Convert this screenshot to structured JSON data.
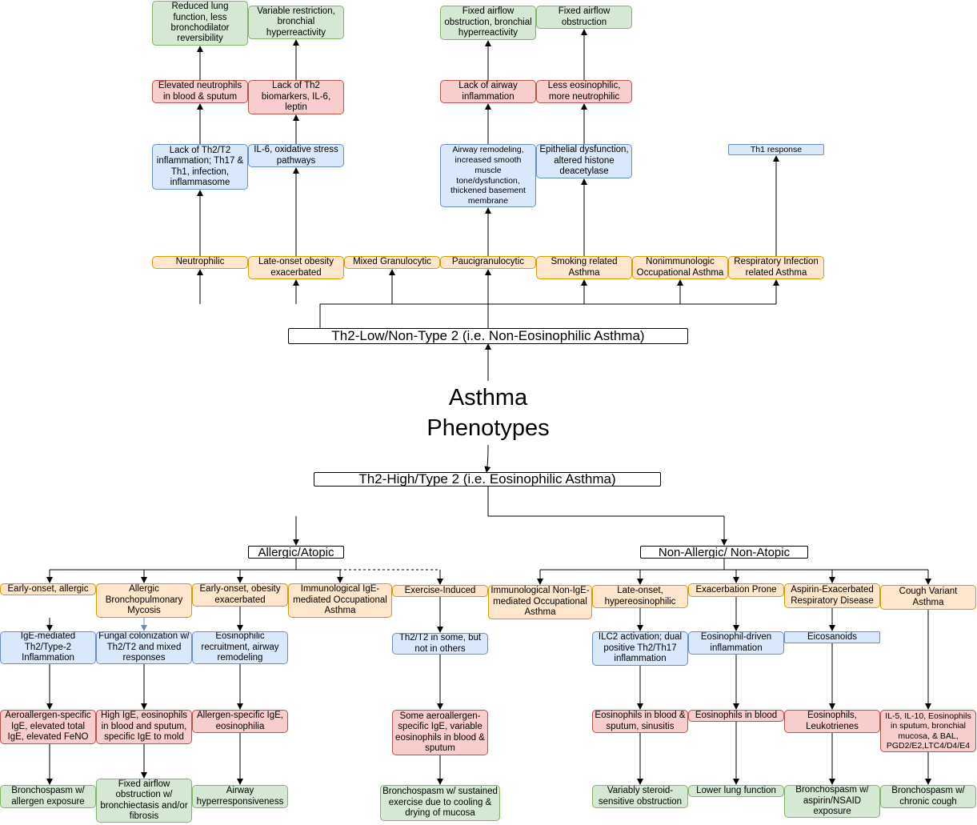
{
  "title": "Asthma\nPhenotypes",
  "low": {
    "root": "Th2-Low/Non-Type 2 (i.e. Non-Eosinophilic Asthma)",
    "phenotypes": [
      "Neutrophilic",
      "Late-onset obesity exacerbated",
      "Mixed Granulocytic",
      "Paucigranulocytic",
      "Smoking related Asthma",
      "Nonimmunologic Occupational Asthma",
      "Respiratory Infection related Asthma"
    ],
    "mechanisms": [
      "Lack of Th2/T2 inflammation; Th17 & Th1, infection, inflammasome",
      "IL-6, oxidative stress pathways",
      "Airway remodeling, increased smooth muscle tone/dysfunction, thickened basement membrane",
      "Epithelial dysfunction, altered histone deacetylase",
      "Th1 response"
    ],
    "biomarkers": [
      "Elevated neutrophils in blood & sputum",
      "Lack of Th2 biomarkers, IL-6, leptin",
      "Lack of airway inflammation",
      "Less eosinophilic, more neutrophilic"
    ],
    "clinical": [
      "Reduced lung function, less bronchodilator reversibility",
      "Variable restriction, bronchial hyperreactivity",
      "Fixed airflow obstruction, bronchial hyperreactivity",
      "Fixed airflow obstruction"
    ]
  },
  "high": {
    "root": "Th2-High/Type 2 (i.e. Eosinophilic Asthma)",
    "allergic": "Allergic/Atopic",
    "nonallergic": "Non-Allergic/ Non-Atopic",
    "phenotypes": [
      "Early-onset, allergic",
      "Allergic Bronchopulmonary Mycosis",
      "Early-onset, obesity exacerbated",
      "Immunological IgE-mediated Occupational Asthma",
      "Exercise-Induced",
      "Immunological Non-IgE-mediated Occupational Asthma",
      "Late-onset, hypereosinophilic",
      "Exacerbation Prone",
      "Aspirin-Exacerbated Respiratory Disease",
      "Cough Variant Asthma"
    ],
    "mechanisms": [
      "IgE-mediated Th2/Type-2 Inflammation",
      "Fungal colonization w/ Th2/T2 and mixed responses",
      "Eosinophilic recruitment, airway remodeling",
      "Th2/T2 in some, but not in others",
      "ILC2 activation; dual positive Th2/Th17 inflammation",
      "Eosinophil-driven inflammation",
      "Eicosanoids"
    ],
    "biomarkers": [
      "Aeroallergen-specific IgE, elevated total IgE, elevated FeNO",
      "High IgE, eosinophils in blood and sputum, specific IgE to mold",
      "Allergen-specific IgE, eosinophilia",
      "Some aeroallergen-specific IgE, variable eosinophils in blood & sputum",
      "Eosinophils in blood & sputum, sinusitis",
      "Eosinophils in blood",
      "Eosinophils, Leukotrienes",
      "IL-5, IL-10, Eosinophils in sputum, bronchial mucosa, & BAL, PGD2/E2,LTC4/D4/E4"
    ],
    "clinical": [
      "Bronchospasm w/ allergen exposure",
      "Fixed airflow obstruction w/ bronchiectasis and/or fibrosis",
      "Airway hyperresponsiveness",
      "Bronchospasm w/ sustained exercise due to cooling & drying of mucosa",
      "Variably steroid-sensitive obstruction",
      "Lower lung function",
      "Bronchospasm w/ aspirin/NSAID exposure",
      "Bronchospasm w/ chronic cough"
    ]
  },
  "colors": {
    "orange_fill": "#ffe6cc",
    "blue_fill": "#dae8fc",
    "red_fill": "#f8cecc",
    "green_fill": "#d5e8d4"
  }
}
